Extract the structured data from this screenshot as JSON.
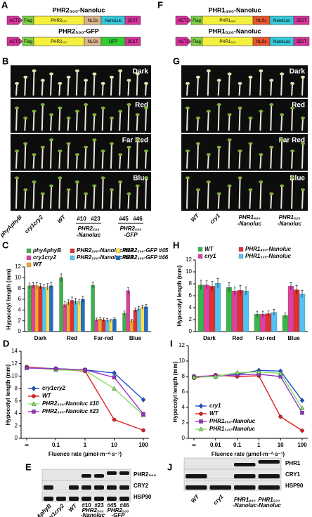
{
  "panel_A": {
    "label": "A",
    "constructs": [
      {
        "title": "PHR2₅₀₀-Nanoluc",
        "parts": [
          {
            "text": "ACT2",
            "color": "#d6339b"
          },
          {
            "text": "Flag",
            "color": "#7ccf45"
          },
          {
            "text": "PHR2₅₀₀",
            "color": "#f4f03c"
          },
          {
            "text": "NLSs",
            "color": "#d9b38c"
          },
          {
            "text": "NanoLuc",
            "color": "#35c8d8"
          },
          {
            "text": "35ST",
            "color": "#d6339b"
          }
        ]
      },
      {
        "title": "PHR2₅₀₀-GFP",
        "parts": [
          {
            "text": "ACT2",
            "color": "#d6339b"
          },
          {
            "text": "Flag",
            "color": "#7ccf45"
          },
          {
            "text": "PHR2₅₀₀",
            "color": "#f4f03c"
          },
          {
            "text": "NLSs",
            "color": "#d9b38c"
          },
          {
            "text": "GFP",
            "color": "#33cc33"
          },
          {
            "text": "35ST",
            "color": "#d6339b"
          }
        ]
      }
    ]
  },
  "panel_F": {
    "label": "F",
    "constructs": [
      {
        "title": "PHR1₄₉₀-Nanoluc",
        "parts": [
          {
            "text": "ACT2",
            "color": "#d6339b"
          },
          {
            "text": "Flag",
            "color": "#7ccf45"
          },
          {
            "text": "PHR1₄₉₀",
            "color": "#f4f03c"
          },
          {
            "text": "NLSs",
            "color": "#e8552f"
          },
          {
            "text": "NanoLuc",
            "color": "#35c8d8"
          },
          {
            "text": "35ST",
            "color": "#d6339b"
          }
        ]
      },
      {
        "title": "PHR1₅₂₀-Nanoluc",
        "parts": [
          {
            "text": "ACT2",
            "color": "#d6339b"
          },
          {
            "text": "Flag",
            "color": "#7ccf45"
          },
          {
            "text": "PHR1₅₂₀",
            "color": "#f4f03c"
          },
          {
            "text": "NLSs",
            "color": "#e8552f"
          },
          {
            "text": "NanoLuc",
            "color": "#35c8d8"
          },
          {
            "text": "35ST",
            "color": "#d6339b"
          }
        ]
      }
    ]
  },
  "panel_B": {
    "label": "B",
    "conditions": [
      "Dark",
      "Red",
      "Far Red",
      "Blue"
    ],
    "genotypes": [
      "phyAphyB",
      "cry1cry2",
      "WT"
    ],
    "lines": [
      "#10",
      "#23",
      "#45",
      "#46"
    ],
    "groups": [
      [
        "PHR2₅₀₀",
        "-Nanoluc"
      ],
      [
        "PHR2₅₀₀",
        "-GFP"
      ]
    ]
  },
  "panel_G": {
    "label": "G",
    "conditions": [
      "Dark",
      "Red",
      "Far Red",
      "Blue"
    ],
    "genotypes": [
      "WT",
      "cry1"
    ],
    "groups": [
      [
        "PHR1₄₉₀",
        "-Nanoluc"
      ],
      [
        "PHR1₅₂₀",
        "-Nanoluc"
      ]
    ]
  },
  "panel_C": {
    "label": "C",
    "type": "bar",
    "ylabel": "Hypocotyl length (mm)",
    "categories": [
      "Dark",
      "Red",
      "Far-red",
      "Blue"
    ],
    "ylim": [
      0,
      12
    ],
    "yticks": [
      0,
      2,
      4,
      6,
      8,
      10,
      12
    ],
    "series": [
      {
        "name": "phyAphyB",
        "color": "#3cb44b",
        "values": [
          8.5,
          10.0,
          8.6,
          3.4
        ],
        "errors": [
          0.5,
          0.7,
          0.6,
          0.4
        ]
      },
      {
        "name": "cry1cry2",
        "color": "#e040a0",
        "values": [
          8.6,
          5.0,
          2.2,
          7.6
        ],
        "errors": [
          0.5,
          0.6,
          0.3,
          0.6
        ]
      },
      {
        "name": "WT",
        "color": "#f5a623",
        "values": [
          8.5,
          5.4,
          2.3,
          2.0
        ],
        "errors": [
          0.6,
          0.5,
          0.3,
          0.3
        ]
      },
      {
        "name": "PHR2₅₀₀-Nanoluc #10",
        "color": "#e03030",
        "values": [
          8.4,
          5.8,
          2.2,
          4.0
        ],
        "errors": [
          0.5,
          0.6,
          0.3,
          0.4
        ]
      },
      {
        "name": "PHR2₅₀₀-Nanoluc #23",
        "color": "#4fc3f7",
        "values": [
          8.2,
          5.6,
          2.1,
          4.2
        ],
        "errors": [
          0.5,
          0.6,
          0.3,
          0.4
        ]
      },
      {
        "name": "PHR2₅₀₀-GFP #45",
        "color": "#ffe14d",
        "values": [
          8.3,
          5.5,
          2.0,
          4.5
        ],
        "errors": [
          0.6,
          0.5,
          0.3,
          0.4
        ]
      },
      {
        "name": "PHR2₅₀₀-GFP #46",
        "color": "#1f6fd0",
        "values": [
          8.5,
          6.0,
          2.3,
          4.6
        ],
        "errors": [
          0.6,
          0.6,
          0.3,
          0.4
        ]
      }
    ]
  },
  "panel_H": {
    "label": "H",
    "type": "bar",
    "ylabel": "Hypocotyl length (mm)",
    "categories": [
      "Dark",
      "Red",
      "Far-red",
      "Blue"
    ],
    "ylim": [
      0,
      12
    ],
    "yticks": [
      0,
      2,
      4,
      6,
      8,
      10,
      12
    ],
    "series": [
      {
        "name": "WT",
        "color": "#3cb44b",
        "values": [
          7.8,
          7.4,
          2.9,
          2.7
        ],
        "errors": [
          0.8,
          0.8,
          0.5,
          0.4
        ]
      },
      {
        "name": "cry1",
        "color": "#e040a0",
        "values": [
          7.8,
          6.8,
          2.9,
          7.6
        ],
        "errors": [
          0.7,
          0.7,
          0.5,
          0.6
        ]
      },
      {
        "name": "PHR1₄₉₀-Nanoluc",
        "color": "#e03030",
        "values": [
          7.6,
          6.9,
          3.0,
          7.0
        ],
        "errors": [
          0.8,
          0.8,
          0.5,
          0.7
        ]
      },
      {
        "name": "PHR1₅₂₀-Nanoluc",
        "color": "#4fc3f7",
        "values": [
          8.1,
          6.8,
          3.2,
          6.3
        ],
        "errors": [
          0.8,
          0.7,
          0.5,
          0.6
        ]
      }
    ]
  },
  "panel_D": {
    "label": "D",
    "type": "line",
    "xlabel": "Fluence rate (µmol·m⁻²·s⁻¹)",
    "ylabel": "Hypocotyl length (mm)",
    "categories": [
      "∞",
      "0.1",
      "1",
      "10",
      "100"
    ],
    "ylim": [
      0,
      14
    ],
    "yticks": [
      0,
      2,
      4,
      6,
      8,
      10,
      12,
      14
    ],
    "series": [
      {
        "name": "cry1cry2",
        "color": "#1f4fd0",
        "marker": "diamond",
        "values": [
          11.4,
          11.2,
          11.0,
          10.5,
          6.2
        ]
      },
      {
        "name": "WT",
        "color": "#e02020",
        "marker": "circle",
        "values": [
          11.5,
          11.1,
          10.8,
          3.0,
          1.3
        ]
      },
      {
        "name": "PHR2₅₀₀-Nanoluc #10",
        "color": "#7fe060",
        "marker": "triangle",
        "values": [
          11.4,
          11.0,
          10.9,
          8.0,
          3.7
        ]
      },
      {
        "name": "PHR2₅₀₀-Nanoluc #23",
        "color": "#9b30c8",
        "marker": "square",
        "values": [
          11.3,
          11.2,
          11.0,
          9.8,
          3.9
        ]
      }
    ]
  },
  "panel_I": {
    "label": "I",
    "type": "line",
    "xlabel": "Fluence rate (µmol·m⁻²·s⁻¹)",
    "ylabel": "Hypocotyl length (mm)",
    "categories": [
      "∞",
      "0.01",
      "0.1",
      "1",
      "10",
      "100"
    ],
    "ylim": [
      0,
      12
    ],
    "yticks": [
      0,
      2,
      4,
      6,
      8,
      10,
      12
    ],
    "series": [
      {
        "name": "cry1",
        "color": "#1f4fd0",
        "marker": "diamond",
        "values": [
          8.0,
          8.0,
          8.3,
          8.8,
          8.7,
          4.9
        ]
      },
      {
        "name": "WT",
        "color": "#e02020",
        "marker": "circle",
        "values": [
          7.8,
          8.2,
          8.0,
          8.1,
          2.8,
          1.0
        ]
      },
      {
        "name": "PHR1₄₉₀-Nanoluc",
        "color": "#9b30c8",
        "marker": "square",
        "values": [
          8.0,
          8.1,
          8.2,
          8.3,
          8.0,
          3.3
        ]
      },
      {
        "name": "PHR1₅₂₀-Nanoluc",
        "color": "#7fe060",
        "marker": "triangle",
        "values": [
          7.9,
          8.0,
          8.5,
          8.6,
          8.4,
          3.9
        ]
      }
    ]
  },
  "panel_E": {
    "label": "E",
    "rows": [
      "PHR2₅₀₀",
      "CRY2",
      "HSP90"
    ],
    "lanes": [
      "phyAphyB",
      "cry1cry2",
      "WT",
      "#10",
      "#23",
      "#45",
      "#46"
    ],
    "groups": [
      [
        "PHR2₅₀₀",
        "-Nanoluc"
      ],
      [
        "PHR2₅₀₀",
        "-GFP"
      ]
    ]
  },
  "panel_J": {
    "label": "J",
    "rows": [
      "PHR1",
      "CRY1",
      "HSP90"
    ],
    "lanes": [
      "WT",
      "cry1"
    ],
    "groups": [
      [
        "PHR1₄₉₀",
        "-Nanoluc"
      ],
      [
        "PHR1₅₂₀",
        "-Nanoluc"
      ]
    ]
  }
}
